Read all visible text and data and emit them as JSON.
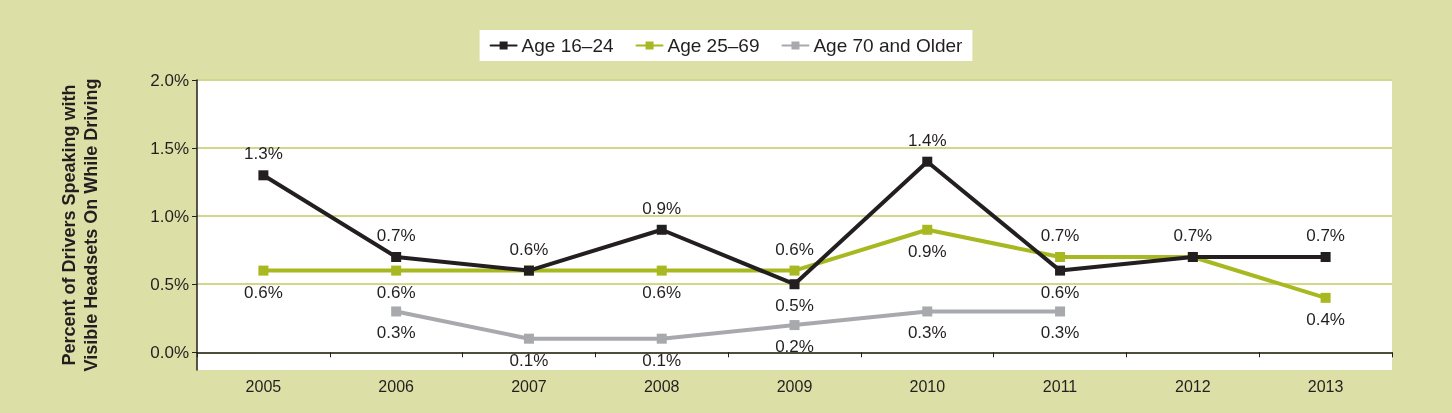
{
  "chart_data": {
    "type": "line",
    "ylabel": "Percent of Drivers Speaking with\nVisible Headsets On While Driving",
    "categories": [
      "2005",
      "2006",
      "2007",
      "2008",
      "2009",
      "2010",
      "2011",
      "2012",
      "2013"
    ],
    "series": [
      {
        "name": "Age 16–24",
        "color": "#231f20",
        "values": [
          1.3,
          0.7,
          0.6,
          0.9,
          0.5,
          1.4,
          0.6,
          0.7,
          0.7
        ],
        "value_labels": [
          "1.3%",
          "0.7%",
          null,
          "0.9%",
          "0.5%",
          "1.4%",
          "0.6%",
          "0.7%",
          "0.7%"
        ]
      },
      {
        "name": "Age 25–69",
        "color": "#a8b820",
        "values": [
          0.6,
          0.6,
          0.6,
          0.6,
          0.6,
          0.9,
          0.7,
          0.7,
          0.4
        ],
        "value_labels": [
          "0.6%",
          "0.6%",
          "0.6%",
          "0.6%",
          "0.6%",
          "0.9%",
          "0.7%",
          null,
          "0.4%"
        ]
      },
      {
        "name": "Age 70 and Older",
        "color": "#a7a9ac",
        "values": [
          null,
          0.3,
          0.1,
          0.1,
          0.2,
          0.3,
          0.3,
          null,
          null
        ],
        "value_labels": [
          null,
          "0.3%",
          "0.1%",
          "0.1%",
          "0.2%",
          "0.3%",
          "0.3%",
          null,
          null
        ]
      }
    ],
    "ylim": [
      -0.13,
      2.0
    ],
    "yticks": [
      {
        "value": 0,
        "label": "0.0%"
      },
      {
        "value": 0.5,
        "label": "0.5%"
      },
      {
        "value": 1.0,
        "label": "1.0%"
      },
      {
        "value": 1.5,
        "label": "1.5%"
      },
      {
        "value": 2.0,
        "label": "2.0%"
      }
    ],
    "grid": "y",
    "legend": "top",
    "marker": "square",
    "line_style": "solid"
  }
}
